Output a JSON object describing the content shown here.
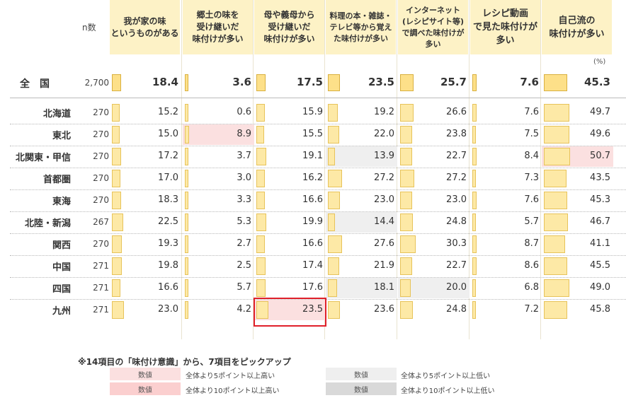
{
  "header": {
    "n_label": "n数",
    "unit": "(%)",
    "columns": [
      {
        "lines": [
          "我が家の味",
          "というものがある"
        ]
      },
      {
        "lines": [
          "郷土の味を",
          "受け継いだ",
          "味付けが多い"
        ]
      },
      {
        "lines": [
          "母や義母から",
          "受け継いだ",
          "味付けが多い"
        ]
      },
      {
        "lines": [
          "料理の本・雑誌・",
          "テレビ等から覚え",
          "た味付けが多い"
        ]
      },
      {
        "lines": [
          "インターネット",
          "(レシピサイト等)",
          "で調べた味付けが",
          "多い"
        ]
      },
      {
        "lines": [
          "レシピ動画",
          "で見た味付けが",
          "多い"
        ]
      },
      {
        "lines": [
          "自己流の",
          "味付けが多い"
        ]
      }
    ]
  },
  "chart_data": {
    "type": "table",
    "national": {
      "label": "全　国",
      "n": "2,700",
      "values": [
        18.4,
        3.6,
        17.5,
        23.5,
        25.7,
        7.6,
        45.3
      ]
    },
    "rows": [
      {
        "label": "北海道",
        "n": "270",
        "values": [
          15.2,
          0.6,
          15.9,
          19.2,
          26.6,
          7.6,
          49.7
        ]
      },
      {
        "label": "東北",
        "n": "270",
        "values": [
          15.0,
          8.9,
          15.5,
          22.0,
          23.8,
          7.5,
          49.6
        ]
      },
      {
        "label": "北関東・甲信",
        "n": "270",
        "values": [
          17.2,
          3.7,
          19.1,
          13.9,
          22.7,
          8.4,
          50.7
        ]
      },
      {
        "label": "首都圏",
        "n": "270",
        "values": [
          17.0,
          3.0,
          16.2,
          27.2,
          27.2,
          7.3,
          43.5
        ]
      },
      {
        "label": "東海",
        "n": "270",
        "values": [
          18.3,
          3.3,
          16.6,
          23.0,
          23.0,
          7.6,
          45.3
        ]
      },
      {
        "label": "北陸・新潟",
        "n": "267",
        "values": [
          22.5,
          5.3,
          19.9,
          14.4,
          24.8,
          5.7,
          46.7
        ]
      },
      {
        "label": "関西",
        "n": "270",
        "values": [
          19.3,
          2.7,
          16.6,
          27.6,
          30.3,
          8.7,
          41.1
        ]
      },
      {
        "label": "中国",
        "n": "271",
        "values": [
          19.8,
          2.5,
          17.4,
          21.9,
          22.7,
          8.6,
          45.5
        ]
      },
      {
        "label": "四国",
        "n": "271",
        "values": [
          16.6,
          5.7,
          17.6,
          18.1,
          20.0,
          6.8,
          49.0
        ]
      },
      {
        "label": "九州",
        "n": "271",
        "values": [
          23.0,
          4.2,
          23.5,
          23.6,
          24.8,
          7.2,
          45.8
        ]
      }
    ],
    "highlight_colors": {
      "high5": "#fbe0e0",
      "high10": "#fbcfcf",
      "low5": "#efefef",
      "low10": "#d9d9d9"
    },
    "highlights": [
      {
        "row": 1,
        "col": 1,
        "level": "high5"
      },
      {
        "row": 2,
        "col": 3,
        "level": "low5"
      },
      {
        "row": 2,
        "col": 6,
        "level": "high5"
      },
      {
        "row": 5,
        "col": 3,
        "level": "low5"
      },
      {
        "row": 8,
        "col": 3,
        "level": "low5"
      },
      {
        "row": 8,
        "col": 4,
        "level": "low5"
      },
      {
        "row": 9,
        "col": 2,
        "level": "high5"
      }
    ],
    "boxed_cell": {
      "row": 9,
      "col": 2
    }
  },
  "note": "※14項目の「味付け意識」から、7項目をピックアップ",
  "legend": [
    {
      "box": "数値",
      "text": "全体より5ポイント以上高い",
      "color": "#fbe0e0"
    },
    {
      "box": "数値",
      "text": "全体より10ポイント以上高い",
      "color": "#fbcfcf"
    },
    {
      "box": "数値",
      "text": "全体より5ポイント以上低い",
      "color": "#efefef"
    },
    {
      "box": "数値",
      "text": "全体より10ポイント以上低い",
      "color": "#d9d9d9"
    }
  ]
}
